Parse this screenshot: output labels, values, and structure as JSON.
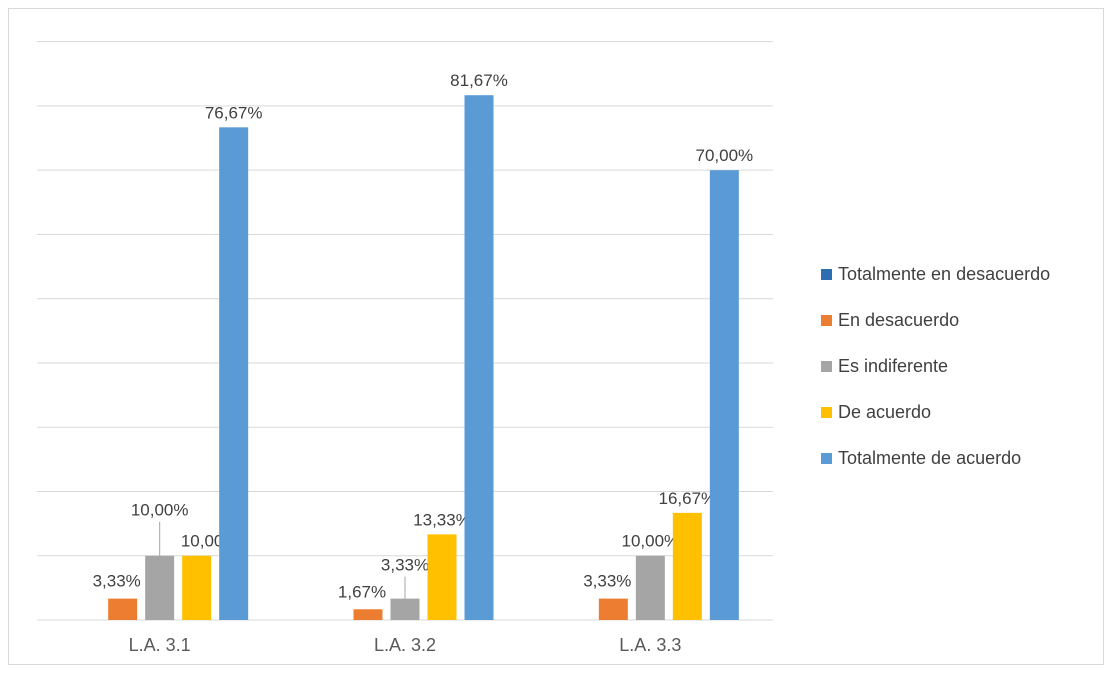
{
  "chart_data": {
    "type": "bar",
    "title": "",
    "xlabel": "",
    "ylabel": "",
    "categories": [
      "L.A. 3.1",
      "L.A. 3.2",
      "L.A. 3.3"
    ],
    "ylim": [
      0,
      90
    ],
    "grid": true,
    "legend_position": "right",
    "series": [
      {
        "name": "Totalmente en desacuerdo",
        "color": "#2e6db4",
        "values": [
          0,
          0,
          0
        ],
        "labels": [
          "",
          "",
          ""
        ]
      },
      {
        "name": "En desacuerdo",
        "color": "#ed7d31",
        "values": [
          3.33,
          1.67,
          3.33
        ],
        "labels": [
          "3,33%",
          "1,67%",
          "3,33%"
        ]
      },
      {
        "name": "Es indiferente",
        "color": "#a5a5a5",
        "values": [
          10.0,
          3.33,
          10.0
        ],
        "labels": [
          "10,00%",
          "3,33%",
          "10,00%"
        ]
      },
      {
        "name": "De acuerdo",
        "color": "#ffc000",
        "values": [
          10.0,
          13.33,
          16.67
        ],
        "labels": [
          "10,00%",
          "13,33%",
          "16,67%"
        ]
      },
      {
        "name": "Totalmente de acuerdo",
        "color": "#5b9bd5",
        "values": [
          76.67,
          81.67,
          70.0
        ],
        "labels": [
          "76,67%",
          "81,67%",
          "70,00%"
        ]
      }
    ]
  }
}
